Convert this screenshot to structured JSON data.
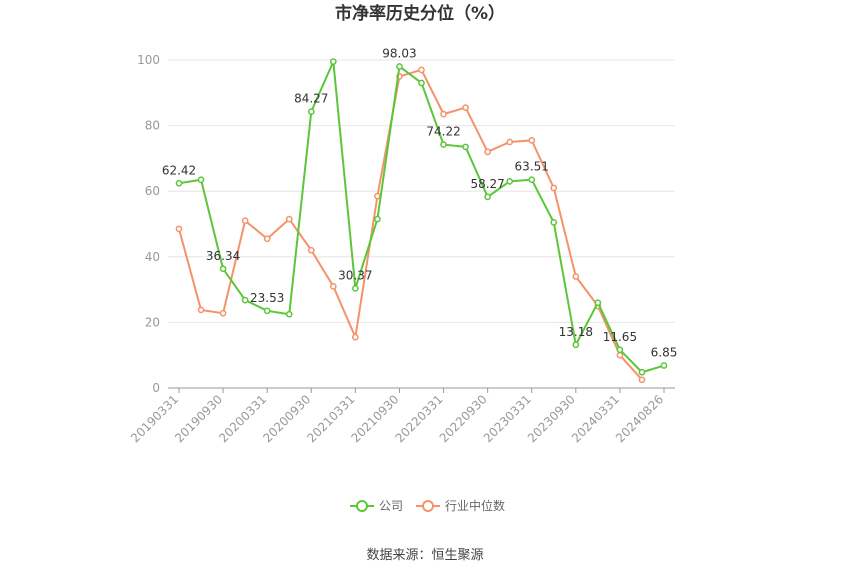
{
  "chart_data": {
    "type": "line",
    "title": "市净率历史分位（%）",
    "ylim": [
      0,
      100
    ],
    "yticks": [
      0,
      20,
      40,
      60,
      80,
      100
    ],
    "x_tick_labels": [
      "20190331",
      "20190930",
      "20200331",
      "20200930",
      "20210331",
      "20210930",
      "20220331",
      "20220930",
      "20230331",
      "20230930",
      "20240331",
      "20240826"
    ],
    "series": [
      {
        "name": "公司",
        "color": "#5cc63a",
        "values": [
          62.42,
          63.5,
          36.34,
          26.8,
          23.53,
          22.5,
          84.27,
          99.5,
          30.37,
          51.5,
          98.03,
          93.0,
          74.22,
          73.5,
          58.27,
          63.0,
          63.51,
          50.5,
          13.18,
          26.0,
          11.65,
          4.8,
          6.85
        ],
        "data_labels": [
          {
            "index": 0,
            "text": "62.42"
          },
          {
            "index": 2,
            "text": "36.34"
          },
          {
            "index": 4,
            "text": "23.53"
          },
          {
            "index": 6,
            "text": "84.27"
          },
          {
            "index": 8,
            "text": "30.37"
          },
          {
            "index": 10,
            "text": "98.03"
          },
          {
            "index": 12,
            "text": "74.22"
          },
          {
            "index": 14,
            "text": "58.27"
          },
          {
            "index": 16,
            "text": "63.51"
          },
          {
            "index": 18,
            "text": "13.18"
          },
          {
            "index": 20,
            "text": "11.65"
          },
          {
            "index": 22,
            "text": "6.85"
          }
        ]
      },
      {
        "name": "行业中位数",
        "color": "#f4926a",
        "values": [
          48.5,
          23.8,
          22.8,
          51.0,
          45.5,
          51.5,
          42.0,
          31.0,
          15.5,
          58.5,
          95.0,
          97.0,
          83.5,
          85.5,
          72.0,
          75.0,
          75.5,
          61.0,
          34.0,
          25.0,
          10.0,
          2.5,
          null
        ]
      }
    ],
    "legend_position": "bottom",
    "grid": true
  },
  "source_text": "数据来源：恒生聚源"
}
